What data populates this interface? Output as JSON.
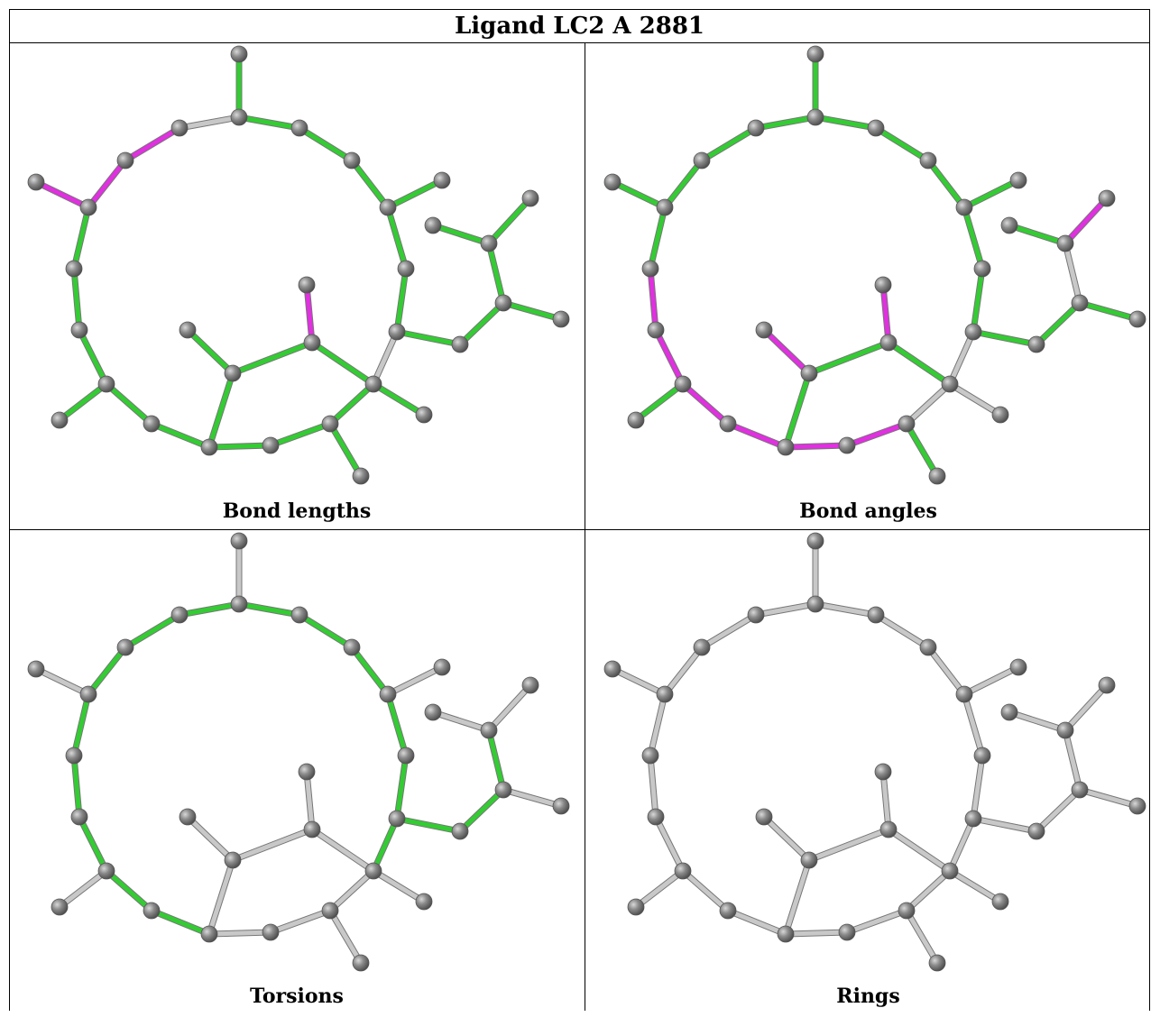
{
  "title": "Ligand LC2 A 2881",
  "panels": [
    {
      "caption": "Bond lengths",
      "magenta": [
        [
          2,
          3
        ],
        [
          1,
          2
        ],
        [
          26,
          27
        ],
        [
          27,
          28
        ],
        [
          17,
          18
        ],
        [
          21,
          22
        ]
      ],
      "green": "all",
      "gray": [
        [
          0,
          4
        ],
        [
          14,
          15
        ],
        [
          15,
          16
        ],
        [
          15,
          24
        ],
        [
          26,
          29
        ]
      ]
    },
    {
      "caption": "Bond angles",
      "magenta": [
        [
          10,
          11
        ],
        [
          11,
          12
        ],
        [
          12,
          13
        ],
        [
          9,
          10
        ],
        [
          13,
          14
        ],
        [
          21,
          22
        ],
        [
          22,
          24
        ],
        [
          11,
          23
        ],
        [
          23,
          25
        ],
        [
          27,
          28
        ],
        [
          26,
          27
        ]
      ],
      "green": "all",
      "gray": [
        [
          15,
          16
        ],
        [
          15,
          24
        ],
        [
          26,
          29
        ]
      ]
    },
    {
      "caption": "Torsions",
      "magenta": [],
      "green": [
        [
          0,
          4
        ],
        [
          4,
          5
        ],
        [
          5,
          6
        ],
        [
          6,
          7
        ],
        [
          7,
          8
        ],
        [
          8,
          9
        ],
        [
          9,
          10
        ],
        [
          10,
          11
        ],
        [
          11,
          12
        ],
        [
          0,
          1
        ],
        [
          1,
          2
        ],
        [
          2,
          5
        ],
        [
          15,
          14
        ],
        [
          14,
          15
        ],
        [
          13,
          14
        ],
        [
          15,
          24
        ],
        [
          15,
          16
        ],
        [
          16,
          17
        ],
        [
          17,
          18
        ],
        [
          18,
          26
        ],
        [
          26,
          29
        ]
      ],
      "gray": "rest"
    },
    {
      "caption": "Rings",
      "magenta": [],
      "green": [],
      "gray": "all"
    }
  ]
}
